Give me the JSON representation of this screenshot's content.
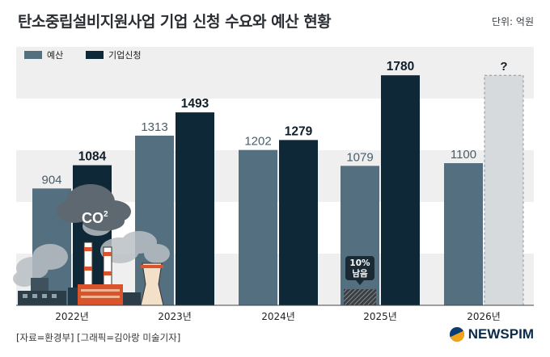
{
  "header": {
    "title": "탄소중립설비지원사업 기업 신청 수요와 예산 현황",
    "unit": "단위: 억원"
  },
  "footer": {
    "source": "[자료=환경부] [그래픽=김아랑 미술기자]",
    "logo": "NEWSPIM"
  },
  "colors": {
    "budget": "#536f80",
    "applications": "#0f2838",
    "band": "#efefef"
  },
  "illustration": {
    "co2_label": "CO",
    "co2_sup": "2",
    "remaining_badge": "10%\n남음"
  },
  "chart_data": {
    "type": "bar",
    "categories": [
      "2022년",
      "2023년",
      "2024년",
      "2025년",
      "2026년"
    ],
    "ylim": [
      0,
      2000
    ],
    "legend_position": "top-left",
    "series": [
      {
        "name": "예산",
        "values": [
          904,
          1313,
          1202,
          1079,
          1100
        ],
        "labels": [
          "904",
          "1313",
          "1202",
          "1079",
          "1100"
        ]
      },
      {
        "name": "기업신청",
        "values": [
          1084,
          1493,
          1279,
          1780,
          null
        ],
        "labels": [
          "1084",
          "1493",
          "1279",
          "1780",
          "?"
        ]
      }
    ]
  }
}
